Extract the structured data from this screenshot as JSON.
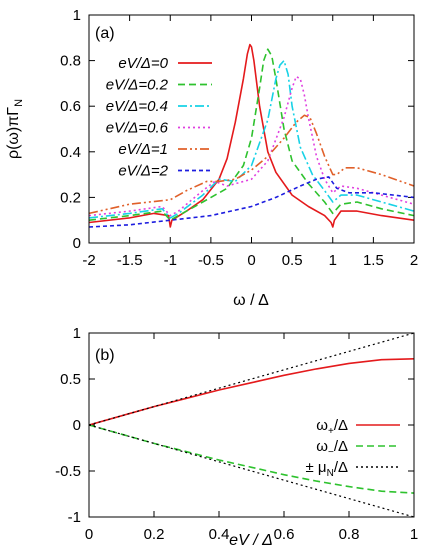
{
  "chart_data": [
    {
      "panel_label": "(a)",
      "type": "line",
      "ylabel_main": "ρ(ω)πΓ",
      "ylabel_sub": "N",
      "xlabel": "ω / Δ",
      "xlim": [
        -2,
        2
      ],
      "ylim": [
        0,
        1
      ],
      "x_ticks": [
        -2,
        -1.5,
        -1,
        -0.5,
        0,
        0.5,
        1,
        1.5,
        2
      ],
      "x_tick_labels": [
        "-2",
        "-1.5",
        "-1",
        "-0.5",
        "0",
        "0.5",
        "1",
        "1.5",
        "2"
      ],
      "y_ticks": [
        0,
        0.2,
        0.4,
        0.6,
        0.8,
        1
      ],
      "y_tick_labels": [
        "0",
        "0.2",
        "0.4",
        "0.6",
        "0.8",
        "1"
      ],
      "grid": false,
      "legend_position": "top-right",
      "series": [
        {
          "name": "eV/Δ=0",
          "color": "#e41a1c",
          "dash": "",
          "x": [
            -2,
            -1.5,
            -1.2,
            -1.02,
            -1.0,
            -0.98,
            -0.8,
            -0.6,
            -0.4,
            -0.3,
            -0.2,
            -0.1,
            -0.05,
            -0.02,
            0.0,
            0.03,
            0.1,
            0.2,
            0.3,
            0.5,
            0.7,
            0.9,
            0.98,
            1.0,
            1.02,
            1.1,
            1.3,
            1.6,
            2.0
          ],
          "y": [
            0.09,
            0.11,
            0.13,
            0.12,
            0.07,
            0.1,
            0.14,
            0.19,
            0.28,
            0.37,
            0.53,
            0.72,
            0.83,
            0.87,
            0.86,
            0.8,
            0.6,
            0.4,
            0.31,
            0.21,
            0.16,
            0.12,
            0.09,
            0.07,
            0.1,
            0.14,
            0.14,
            0.12,
            0.1
          ]
        },
        {
          "name": "eV/Δ=0.2",
          "color": "#2ec22e",
          "dash": "7,4",
          "x": [
            -2,
            -1.5,
            -1.1,
            -1.0,
            -0.9,
            -0.6,
            -0.3,
            -0.1,
            0.0,
            0.1,
            0.15,
            0.2,
            0.25,
            0.3,
            0.4,
            0.5,
            0.7,
            0.9,
            1.0,
            1.1,
            1.3,
            1.6,
            2.0
          ],
          "y": [
            0.1,
            0.12,
            0.14,
            0.1,
            0.12,
            0.18,
            0.24,
            0.34,
            0.46,
            0.68,
            0.8,
            0.85,
            0.82,
            0.72,
            0.5,
            0.36,
            0.26,
            0.18,
            0.13,
            0.17,
            0.18,
            0.15,
            0.12
          ]
        },
        {
          "name": "eV/Δ=0.4",
          "color": "#17d2e6",
          "dash": "9,3,2,3",
          "x": [
            -2,
            -1.5,
            -1.1,
            -1.0,
            -0.9,
            -0.6,
            -0.4,
            -0.2,
            0.0,
            0.2,
            0.3,
            0.35,
            0.4,
            0.45,
            0.5,
            0.6,
            0.75,
            0.9,
            1.0,
            1.1,
            1.3,
            1.6,
            2.0
          ],
          "y": [
            0.11,
            0.13,
            0.15,
            0.11,
            0.13,
            0.21,
            0.28,
            0.27,
            0.34,
            0.54,
            0.72,
            0.78,
            0.8,
            0.74,
            0.6,
            0.42,
            0.3,
            0.23,
            0.18,
            0.21,
            0.21,
            0.18,
            0.14
          ]
        },
        {
          "name": "eV/Δ=0.6",
          "color": "#e040e0",
          "dash": "2,3",
          "x": [
            -2,
            -1.5,
            -1.1,
            -1.0,
            -0.9,
            -0.6,
            -0.45,
            -0.3,
            0.0,
            0.2,
            0.4,
            0.5,
            0.55,
            0.6,
            0.65,
            0.7,
            0.8,
            0.9,
            1.0,
            1.1,
            1.3,
            1.6,
            2.0
          ],
          "y": [
            0.12,
            0.14,
            0.16,
            0.12,
            0.14,
            0.23,
            0.27,
            0.25,
            0.28,
            0.36,
            0.55,
            0.68,
            0.73,
            0.72,
            0.65,
            0.55,
            0.38,
            0.28,
            0.22,
            0.25,
            0.24,
            0.21,
            0.17
          ]
        },
        {
          "name": "eV/Δ=1",
          "color": "#e0602a",
          "dash": "9,3,2,3,2,3",
          "x": [
            -2,
            -1.5,
            -1.0,
            -0.8,
            -0.55,
            -0.4,
            -0.2,
            0.0,
            0.2,
            0.4,
            0.55,
            0.65,
            0.72,
            0.8,
            0.9,
            1.0,
            1.05,
            1.15,
            1.3,
            1.6,
            2.0
          ],
          "y": [
            0.13,
            0.17,
            0.19,
            0.23,
            0.27,
            0.27,
            0.28,
            0.32,
            0.38,
            0.46,
            0.53,
            0.56,
            0.55,
            0.48,
            0.38,
            0.3,
            0.3,
            0.33,
            0.33,
            0.3,
            0.25
          ]
        },
        {
          "name": "eV/Δ=2",
          "color": "#1d1ddf",
          "dash": "4,3",
          "x": [
            -2,
            -1.5,
            -1.0,
            -0.5,
            0.0,
            0.3,
            0.6,
            0.8,
            0.95,
            1.05,
            1.2,
            1.5,
            2.0
          ],
          "y": [
            0.07,
            0.08,
            0.1,
            0.12,
            0.16,
            0.2,
            0.25,
            0.28,
            0.29,
            0.24,
            0.22,
            0.22,
            0.2
          ]
        }
      ]
    },
    {
      "panel_label": "(b)",
      "type": "line",
      "xlabel": "eV / Δ",
      "xlim": [
        0,
        1
      ],
      "ylim": [
        -1,
        1
      ],
      "x_ticks": [
        0,
        0.2,
        0.4,
        0.6,
        0.8,
        1
      ],
      "x_tick_labels": [
        "0",
        "0.2",
        "0.4",
        "0.6",
        "0.8",
        "1"
      ],
      "y_ticks": [
        -1,
        -0.5,
        0,
        0.5,
        1
      ],
      "y_tick_labels": [
        "-1",
        "-0.5",
        "0",
        "0.5",
        "1"
      ],
      "grid": false,
      "legend_position": "bottom-right",
      "series": [
        {
          "name": "ω+/Δ",
          "color": "#e41a1c",
          "dash": "",
          "x": [
            0,
            0.1,
            0.2,
            0.3,
            0.4,
            0.5,
            0.6,
            0.7,
            0.8,
            0.9,
            1.0
          ],
          "y": [
            0,
            0.1,
            0.2,
            0.29,
            0.38,
            0.46,
            0.54,
            0.61,
            0.67,
            0.71,
            0.72
          ]
        },
        {
          "name": "ω−/Δ",
          "color": "#2ec22e",
          "dash": "7,4",
          "x": [
            0,
            0.1,
            0.2,
            0.3,
            0.4,
            0.5,
            0.6,
            0.7,
            0.8,
            0.9,
            1.0
          ],
          "y": [
            0,
            -0.1,
            -0.2,
            -0.29,
            -0.38,
            -0.46,
            -0.54,
            -0.61,
            -0.67,
            -0.72,
            -0.74
          ]
        },
        {
          "name": "±μN/Δ",
          "color": "#000000",
          "dash": "2,3",
          "x": [
            0,
            1
          ],
          "y": [
            0,
            1
          ]
        },
        {
          "name": "",
          "color": "#000000",
          "dash": "2,3",
          "x": [
            0,
            1
          ],
          "y": [
            0,
            -1
          ]
        }
      ],
      "legend": [
        {
          "main": "ω",
          "sub": "+",
          "rest": "/Δ"
        },
        {
          "main": "ω",
          "sub": "−",
          "rest": "/Δ"
        },
        {
          "main": "± μ",
          "sub": "N",
          "rest": "/Δ"
        }
      ]
    }
  ]
}
